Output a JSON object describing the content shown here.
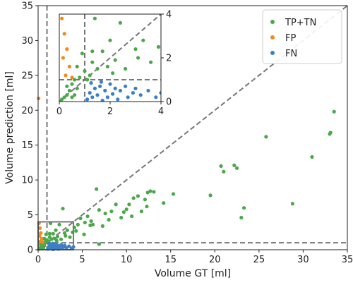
{
  "chart_data": {
    "type": "scatter",
    "xlabel": "Volume GT [ml]",
    "ylabel": "Volume prediction [ml]",
    "xlim": [
      0,
      35
    ],
    "ylim": [
      0,
      35
    ],
    "xticks": [
      0,
      5,
      10,
      15,
      20,
      25,
      30,
      35
    ],
    "yticks": [
      0,
      5,
      10,
      15,
      20,
      25,
      30,
      35
    ],
    "legend_position": "top-right",
    "colors": {
      "TP+TN": "#4aa84a",
      "FP": "#f08a1a",
      "FN": "#3b7fc4"
    },
    "reference_lines": {
      "identity": true,
      "threshold": 1
    },
    "zoom_box": {
      "xlim": [
        0,
        4
      ],
      "ylim": [
        0,
        4
      ]
    },
    "series": [
      {
        "name": "TP+TN",
        "points": [
          [
            33.5,
            19.8
          ],
          [
            33.1,
            16.8
          ],
          [
            33.0,
            16.6
          ],
          [
            31.0,
            13.3
          ],
          [
            28.8,
            6.6
          ],
          [
            25.8,
            16.2
          ],
          [
            23.3,
            6.0
          ],
          [
            22.2,
            12.1
          ],
          [
            22.5,
            11.7
          ],
          [
            20.7,
            12.0
          ],
          [
            21.0,
            11.2
          ],
          [
            19.5,
            7.8
          ],
          [
            23.0,
            4.6
          ],
          [
            15.3,
            8.0
          ],
          [
            14.2,
            6.7
          ],
          [
            13.1,
            8.3
          ],
          [
            12.7,
            8.4
          ],
          [
            12.4,
            8.2
          ],
          [
            12.1,
            7.2
          ],
          [
            12.3,
            6.2
          ],
          [
            11.7,
            5.5
          ],
          [
            10.8,
            7.4
          ],
          [
            11.3,
            7.7
          ],
          [
            10.3,
            6.5
          ],
          [
            10.6,
            4.8
          ],
          [
            9.7,
            5.4
          ],
          [
            10.0,
            5.8
          ],
          [
            9.4,
            4.6
          ],
          [
            8.8,
            6.5
          ],
          [
            8.3,
            5.5
          ],
          [
            8.0,
            4.3
          ],
          [
            7.6,
            5.2
          ],
          [
            7.3,
            3.4
          ],
          [
            6.9,
            5.7
          ],
          [
            6.6,
            8.7
          ],
          [
            6.2,
            3.6
          ],
          [
            6.0,
            4.1
          ],
          [
            5.9,
            3.5
          ],
          [
            5.6,
            4.8
          ],
          [
            5.3,
            3.9
          ],
          [
            5.2,
            2.2
          ],
          [
            4.8,
            4.5
          ],
          [
            4.5,
            3.6
          ],
          [
            4.3,
            2.7
          ],
          [
            4.1,
            3.2
          ],
          [
            3.9,
            2.5
          ],
          [
            3.6,
            1.8
          ],
          [
            3.3,
            2.8
          ],
          [
            3.0,
            2.4
          ],
          [
            2.8,
            5.9
          ],
          [
            2.6,
            1.5
          ],
          [
            2.4,
            3.6
          ],
          [
            2.2,
            1.9
          ],
          [
            2.0,
            2.8
          ],
          [
            1.9,
            1.6
          ],
          [
            1.7,
            2.3
          ],
          [
            1.5,
            1.5
          ],
          [
            1.4,
            3.8
          ],
          [
            1.3,
            1.8
          ],
          [
            1.2,
            1.2
          ],
          [
            1.0,
            1.4
          ],
          [
            0.9,
            2.2
          ],
          [
            0.8,
            1.1
          ],
          [
            0.7,
            1.6
          ],
          [
            0.6,
            1.0
          ],
          [
            0.5,
            0.8
          ],
          [
            0.4,
            0.5
          ],
          [
            0.3,
            0.7
          ],
          [
            0.3,
            0.3
          ],
          [
            0.2,
            0.2
          ],
          [
            0.1,
            0.1
          ],
          [
            0.5,
            0.2
          ],
          [
            0.7,
            0.6
          ],
          [
            0.6,
            0.3
          ],
          [
            1.1,
            1.0
          ],
          [
            6.9,
            0.8
          ],
          [
            1.3,
            2.3
          ],
          [
            2.1,
            1.3
          ],
          [
            3.1,
            2.0
          ]
        ]
      },
      {
        "name": "FP",
        "points": [
          [
            0.1,
            3.8
          ],
          [
            0.2,
            3.1
          ],
          [
            0.3,
            2.4
          ],
          [
            0.15,
            2.0
          ],
          [
            0.4,
            1.6
          ],
          [
            0.25,
            1.2
          ],
          [
            0.05,
            21.7
          ],
          [
            0.5,
            1.1
          ]
        ]
      },
      {
        "name": "FN",
        "points": [
          [
            1.1,
            0.1
          ],
          [
            1.2,
            0.4
          ],
          [
            1.3,
            0.2
          ],
          [
            1.4,
            0.6
          ],
          [
            1.5,
            0.3
          ],
          [
            1.6,
            0.7
          ],
          [
            1.7,
            0.05
          ],
          [
            1.8,
            0.5
          ],
          [
            1.9,
            0.2
          ],
          [
            2.0,
            0.8
          ],
          [
            2.1,
            0.35
          ],
          [
            2.2,
            0.6
          ],
          [
            2.3,
            0.1
          ],
          [
            2.4,
            0.5
          ],
          [
            2.6,
            0.7
          ],
          [
            2.7,
            0.2
          ],
          [
            2.9,
            0.4
          ],
          [
            3.0,
            0.6
          ],
          [
            3.2,
            0.3
          ],
          [
            3.5,
            0.5
          ],
          [
            3.8,
            0.2
          ],
          [
            4.0,
            0.4
          ],
          [
            1.25,
            0.85
          ],
          [
            1.65,
            0.9
          ]
        ]
      }
    ],
    "inset": {
      "xlim": [
        0,
        4
      ],
      "ylim": [
        0,
        4
      ],
      "xticks": [
        0,
        2,
        4
      ],
      "yticks": [
        0,
        2,
        4
      ]
    }
  }
}
